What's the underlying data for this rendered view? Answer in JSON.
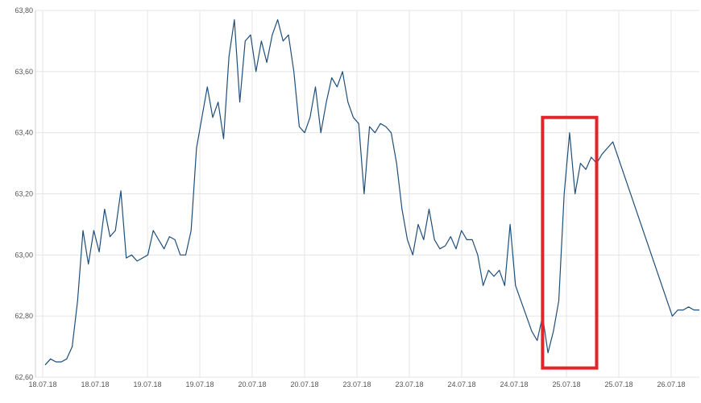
{
  "chart_data": {
    "type": "line",
    "title": "",
    "xlabel": "",
    "ylabel": "",
    "ylim": [
      62.6,
      63.8
    ],
    "y_ticks": [
      "62,60",
      "62,80",
      "63,00",
      "63,20",
      "63,40",
      "63,60",
      "63,80"
    ],
    "x_ticks": [
      "18.07.18",
      "18.07.18",
      "19.07.18",
      "19.07.18",
      "20.07.18",
      "20.07.18",
      "23.07.18",
      "23.07.18",
      "24.07.18",
      "24.07.18",
      "25.07.18",
      "25.07.18",
      "26.07.18",
      "26.07.18"
    ],
    "grid": true,
    "series": [
      {
        "color": "#1f4e79",
        "points": [
          [
            0,
            62.64
          ],
          [
            1,
            62.66
          ],
          [
            2,
            62.65
          ],
          [
            3,
            62.65
          ],
          [
            4,
            62.66
          ],
          [
            5,
            62.7
          ],
          [
            6,
            62.85
          ],
          [
            7,
            63.08
          ],
          [
            8,
            62.97
          ],
          [
            9,
            63.08
          ],
          [
            10,
            63.01
          ],
          [
            11,
            63.15
          ],
          [
            12,
            63.06
          ],
          [
            13,
            63.08
          ],
          [
            14,
            63.21
          ],
          [
            15,
            62.99
          ],
          [
            16,
            63.0
          ],
          [
            17,
            62.98
          ],
          [
            18,
            62.99
          ],
          [
            19,
            63.0
          ],
          [
            20,
            63.08
          ],
          [
            21,
            63.05
          ],
          [
            22,
            63.02
          ],
          [
            23,
            63.06
          ],
          [
            24,
            63.05
          ],
          [
            25,
            63.0
          ],
          [
            26,
            63.0
          ],
          [
            27,
            63.08
          ],
          [
            28,
            63.35
          ],
          [
            29,
            63.45
          ],
          [
            30,
            63.55
          ],
          [
            31,
            63.45
          ],
          [
            32,
            63.5
          ],
          [
            33,
            63.38
          ],
          [
            34,
            63.65
          ],
          [
            35,
            63.77
          ],
          [
            36,
            63.5
          ],
          [
            37,
            63.7
          ],
          [
            38,
            63.72
          ],
          [
            39,
            63.6
          ],
          [
            40,
            63.7
          ],
          [
            41,
            63.63
          ],
          [
            42,
            63.72
          ],
          [
            43,
            63.77
          ],
          [
            44,
            63.7
          ],
          [
            45,
            63.72
          ],
          [
            46,
            63.6
          ],
          [
            47,
            63.42
          ],
          [
            48,
            63.4
          ],
          [
            49,
            63.45
          ],
          [
            50,
            63.55
          ],
          [
            51,
            63.4
          ],
          [
            52,
            63.5
          ],
          [
            53,
            63.58
          ],
          [
            54,
            63.55
          ],
          [
            55,
            63.6
          ],
          [
            56,
            63.5
          ],
          [
            57,
            63.45
          ],
          [
            58,
            63.43
          ],
          [
            59,
            63.2
          ],
          [
            60,
            63.42
          ],
          [
            61,
            63.4
          ],
          [
            62,
            63.43
          ],
          [
            63,
            63.42
          ],
          [
            64,
            63.4
          ],
          [
            65,
            63.3
          ],
          [
            66,
            63.15
          ],
          [
            67,
            63.05
          ],
          [
            68,
            63.0
          ],
          [
            69,
            63.1
          ],
          [
            70,
            63.05
          ],
          [
            71,
            63.15
          ],
          [
            72,
            63.05
          ],
          [
            73,
            63.02
          ],
          [
            74,
            63.03
          ],
          [
            75,
            63.06
          ],
          [
            76,
            63.02
          ],
          [
            77,
            63.08
          ],
          [
            78,
            63.05
          ],
          [
            79,
            63.05
          ],
          [
            80,
            63.0
          ],
          [
            81,
            62.9
          ],
          [
            82,
            62.95
          ],
          [
            83,
            62.93
          ],
          [
            84,
            62.95
          ],
          [
            85,
            62.9
          ],
          [
            86,
            63.1
          ],
          [
            87,
            62.9
          ],
          [
            88,
            62.85
          ],
          [
            89,
            62.8
          ],
          [
            90,
            62.75
          ],
          [
            91,
            62.72
          ],
          [
            92,
            62.8
          ],
          [
            93,
            62.68
          ],
          [
            94,
            62.75
          ],
          [
            95,
            62.85
          ],
          [
            96,
            63.2
          ],
          [
            97,
            63.4
          ],
          [
            98,
            63.2
          ],
          [
            99,
            63.3
          ],
          [
            100,
            63.28
          ],
          [
            101,
            63.32
          ],
          [
            102,
            63.3
          ],
          [
            103,
            63.33
          ],
          [
            104,
            63.35
          ],
          [
            105,
            63.37
          ],
          [
            116,
            62.8
          ],
          [
            117,
            62.82
          ],
          [
            118,
            62.82
          ],
          [
            119,
            62.83
          ],
          [
            120,
            62.82
          ],
          [
            121,
            62.82
          ]
        ]
      }
    ],
    "annotations": [
      {
        "type": "highlight-box",
        "color": "#e0262b",
        "x_range": [
          92,
          102
        ],
        "y_range": [
          62.63,
          63.45
        ]
      }
    ]
  }
}
